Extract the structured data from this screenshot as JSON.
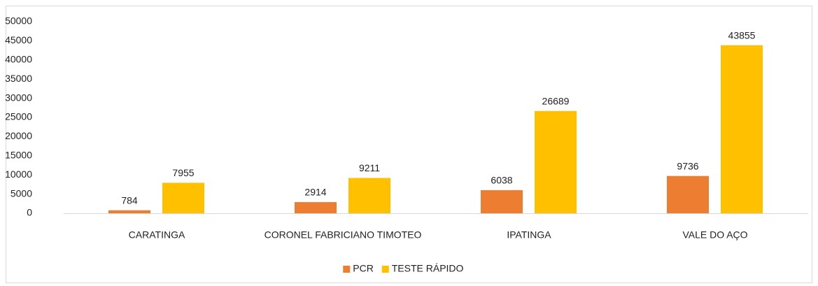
{
  "chart_data": {
    "type": "bar",
    "categories": [
      "CARATINGA",
      "CORONEL FABRICIANO TIMOTEO",
      "IPATINGA",
      "VALE DO AÇO"
    ],
    "series": [
      {
        "name": "PCR",
        "color": "#ed7d31",
        "values": [
          784,
          2914,
          6038,
          9736
        ]
      },
      {
        "name": "TESTE RÁPIDO",
        "color": "#ffc000",
        "values": [
          7955,
          9211,
          26689,
          43855
        ]
      }
    ],
    "ylim": [
      0,
      50000
    ],
    "yticks": [
      0,
      5000,
      10000,
      15000,
      20000,
      25000,
      30000,
      35000,
      40000,
      45000,
      50000
    ],
    "grid": false,
    "legend": "bottom"
  }
}
